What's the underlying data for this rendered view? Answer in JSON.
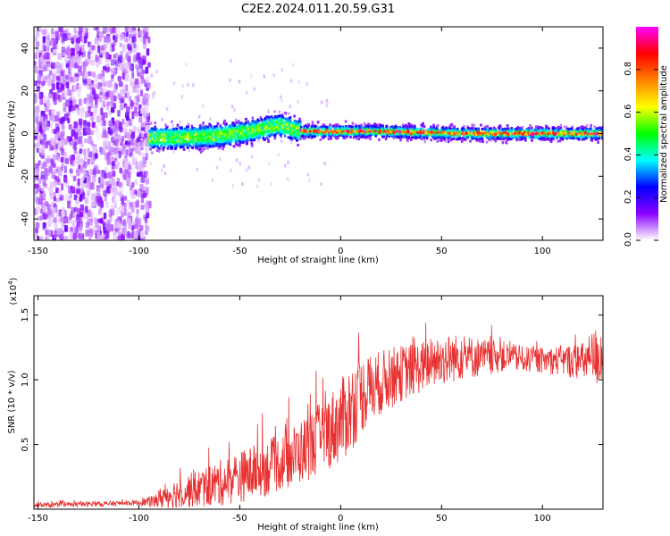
{
  "title": "C2E2.2024.011.20.59.G31",
  "chart_data": [
    {
      "type": "heatmap",
      "xlabel": "Height of straight line (km)",
      "ylabel": "Frequency (Hz)",
      "xlim": [
        -152,
        130
      ],
      "ylim": [
        -50,
        50
      ],
      "x_ticks": [
        -150,
        -100,
        -50,
        0,
        50,
        100
      ],
      "y_ticks": [
        -40,
        -20,
        0,
        20,
        40
      ],
      "colorbar": {
        "label": "Normalized spectral amplitude",
        "range": [
          0,
          1
        ],
        "ticks": [
          "0.0",
          "0.2",
          "0.4",
          "0.6",
          "0.8"
        ],
        "colormap": [
          "#ffffff",
          "#8a00ff",
          "#0000ff",
          "#00ffff",
          "#00ff00",
          "#ffff00",
          "#ff8000",
          "#ff0000",
          "#ff00ff"
        ]
      },
      "regions": [
        {
          "x_range": [
            -152,
            -95
          ],
          "description": "broadband noise scatter over full frequency range"
        },
        {
          "x_range": [
            -95,
            -20
          ],
          "center_freq_hz": [
            [
              -95,
              -2
            ],
            [
              -80,
              -2
            ],
            [
              -60,
              -1
            ],
            [
              -45,
              1
            ],
            [
              -30,
              4
            ],
            [
              -20,
              1
            ]
          ],
          "band_halfwidth_hz": 6
        },
        {
          "x_range": [
            -20,
            130
          ],
          "center_freq_hz": [
            [
              -20,
              1
            ],
            [
              20,
              1
            ],
            [
              60,
              0
            ],
            [
              130,
              0
            ]
          ],
          "band_halfwidth_hz": 3
        }
      ]
    },
    {
      "type": "line",
      "xlabel": "Height of straight line (km)",
      "ylabel": "SNR (10 * v/v)",
      "y_exponent_label": "(x10",
      "y_exponent_sup": "4",
      "y_exponent_close": ")",
      "xlim": [
        -152,
        130
      ],
      "ylim": [
        0.0,
        1.65
      ],
      "x_ticks": [
        -150,
        -100,
        -50,
        0,
        50,
        100
      ],
      "y_ticks": [
        "0.5",
        "1.0",
        "1.5"
      ],
      "y_tick_values": [
        0.5,
        1.0,
        1.5
      ],
      "color": "#e83030",
      "series": [
        {
          "envelope_x": [
            -152,
            -120,
            -100,
            -92,
            -88,
            -80,
            -70,
            -60,
            -50,
            -40,
            -30,
            -20,
            -10,
            0,
            5,
            10,
            20,
            30,
            40,
            50,
            60,
            70,
            80,
            90,
            100,
            110,
            120,
            130
          ],
          "envelope_mean": [
            0.03,
            0.04,
            0.05,
            0.06,
            0.1,
            0.13,
            0.16,
            0.2,
            0.25,
            0.3,
            0.36,
            0.44,
            0.55,
            0.68,
            0.78,
            0.88,
            0.98,
            1.05,
            1.1,
            1.15,
            1.18,
            1.17,
            1.18,
            1.16,
            1.15,
            1.15,
            1.14,
            1.2
          ],
          "envelope_amp": [
            0.02,
            0.02,
            0.02,
            0.05,
            0.1,
            0.12,
            0.15,
            0.18,
            0.2,
            0.22,
            0.22,
            0.25,
            0.28,
            0.32,
            0.35,
            0.3,
            0.25,
            0.22,
            0.2,
            0.2,
            0.18,
            0.15,
            0.12,
            0.1,
            0.1,
            0.12,
            0.15,
            0.28
          ]
        }
      ]
    }
  ]
}
